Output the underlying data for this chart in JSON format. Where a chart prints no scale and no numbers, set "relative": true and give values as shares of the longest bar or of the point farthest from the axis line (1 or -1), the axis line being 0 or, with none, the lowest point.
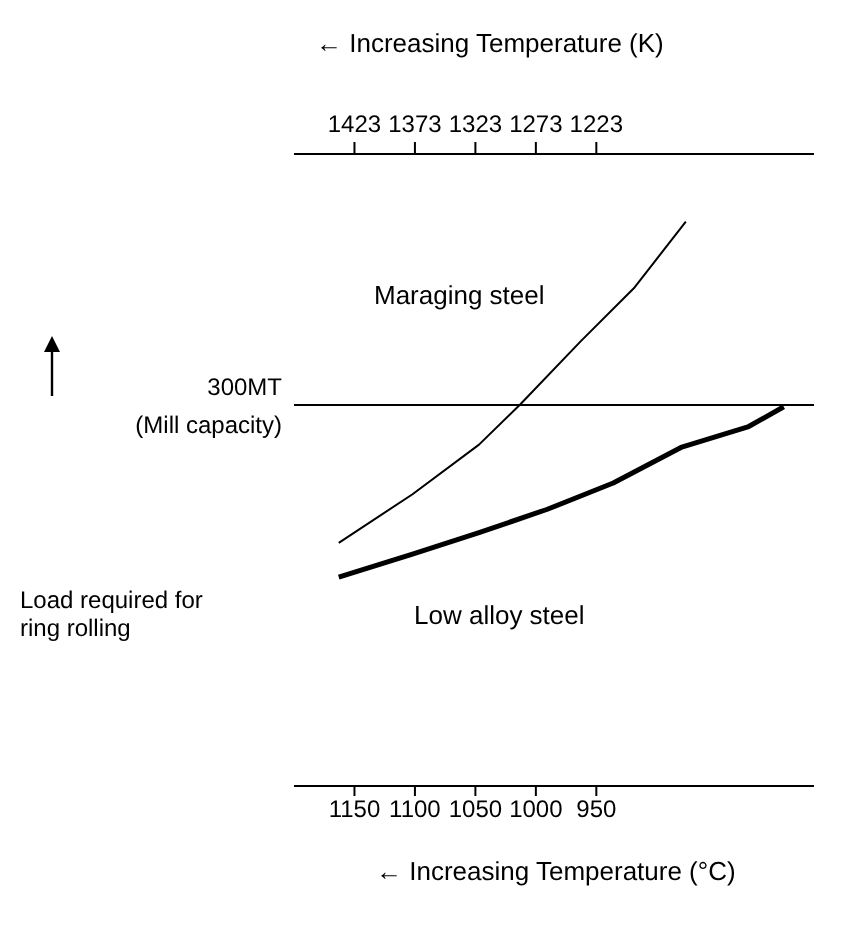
{
  "chart_data": {
    "type": "line",
    "relative": true,
    "xlabel": "← Increasing Temperature (°C)",
    "x2label": "← Increasing Temperature (K)",
    "ylabel": "Load required for ring rolling",
    "xlim": [
      1200,
      770
    ],
    "xticks": [
      1150,
      1100,
      1050,
      1000,
      950
    ],
    "x2lim": [
      1473,
      1043
    ],
    "x2ticks": [
      1423,
      1373,
      1323,
      1273,
      1223
    ],
    "series": [
      {
        "name": "Maraging steel",
        "color": "#000000",
        "x": [
          1163,
          1102,
          1047,
          1013,
          963,
          919,
          876
        ],
        "values": [
          0.431,
          0.517,
          0.605,
          0.676,
          0.788,
          0.882,
          1
        ]
      },
      {
        "name": "Low alloy steel",
        "color": "#000000",
        "x": [
          1163,
          1102,
          1047,
          991,
          936,
          880,
          824,
          795
        ],
        "values": [
          0.37,
          0.411,
          0.449,
          0.49,
          0.537,
          0.6,
          0.637,
          0.672
        ]
      }
    ],
    "ref_lines": [
      {
        "axis": "y",
        "value": 0.675,
        "label": "300MT",
        "color": "#000000"
      }
    ],
    "annotations": [
      "(Mill capacity)"
    ],
    "marker": "none",
    "line_style": "solid",
    "grid": false,
    "legend": false
  }
}
